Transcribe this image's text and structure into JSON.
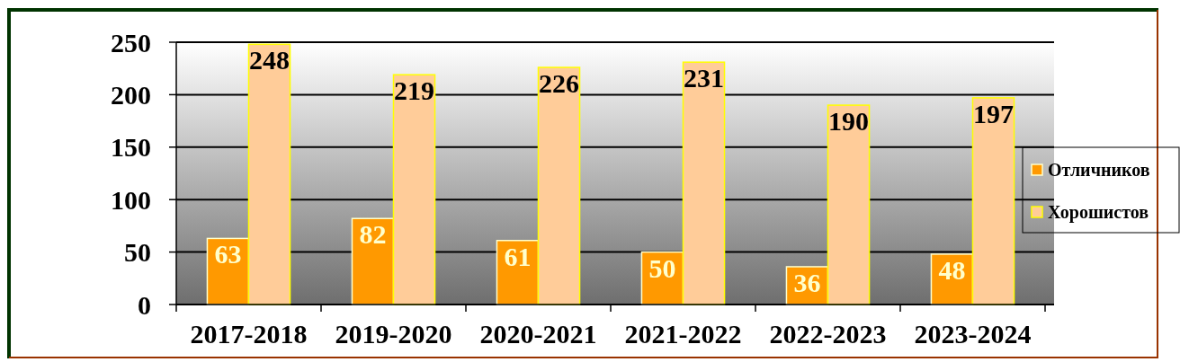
{
  "chart_data": {
    "type": "bar",
    "categories": [
      "2017-2018",
      "2019-2020",
      "2020-2021",
      "2021-2022",
      "2022-2023",
      "2023-2024"
    ],
    "series": [
      {
        "name": "Отличников",
        "color": "#ff9900",
        "values": [
          63,
          82,
          61,
          50,
          36,
          48
        ]
      },
      {
        "name": "Хорошистов",
        "color": "#ffcc99",
        "values": [
          248,
          219,
          226,
          231,
          190,
          197
        ]
      }
    ],
    "ylim": [
      0,
      250
    ],
    "yticks": [
      0,
      50,
      100,
      150,
      200,
      250
    ],
    "grid": "y",
    "legend": "right",
    "data_labels": true
  }
}
